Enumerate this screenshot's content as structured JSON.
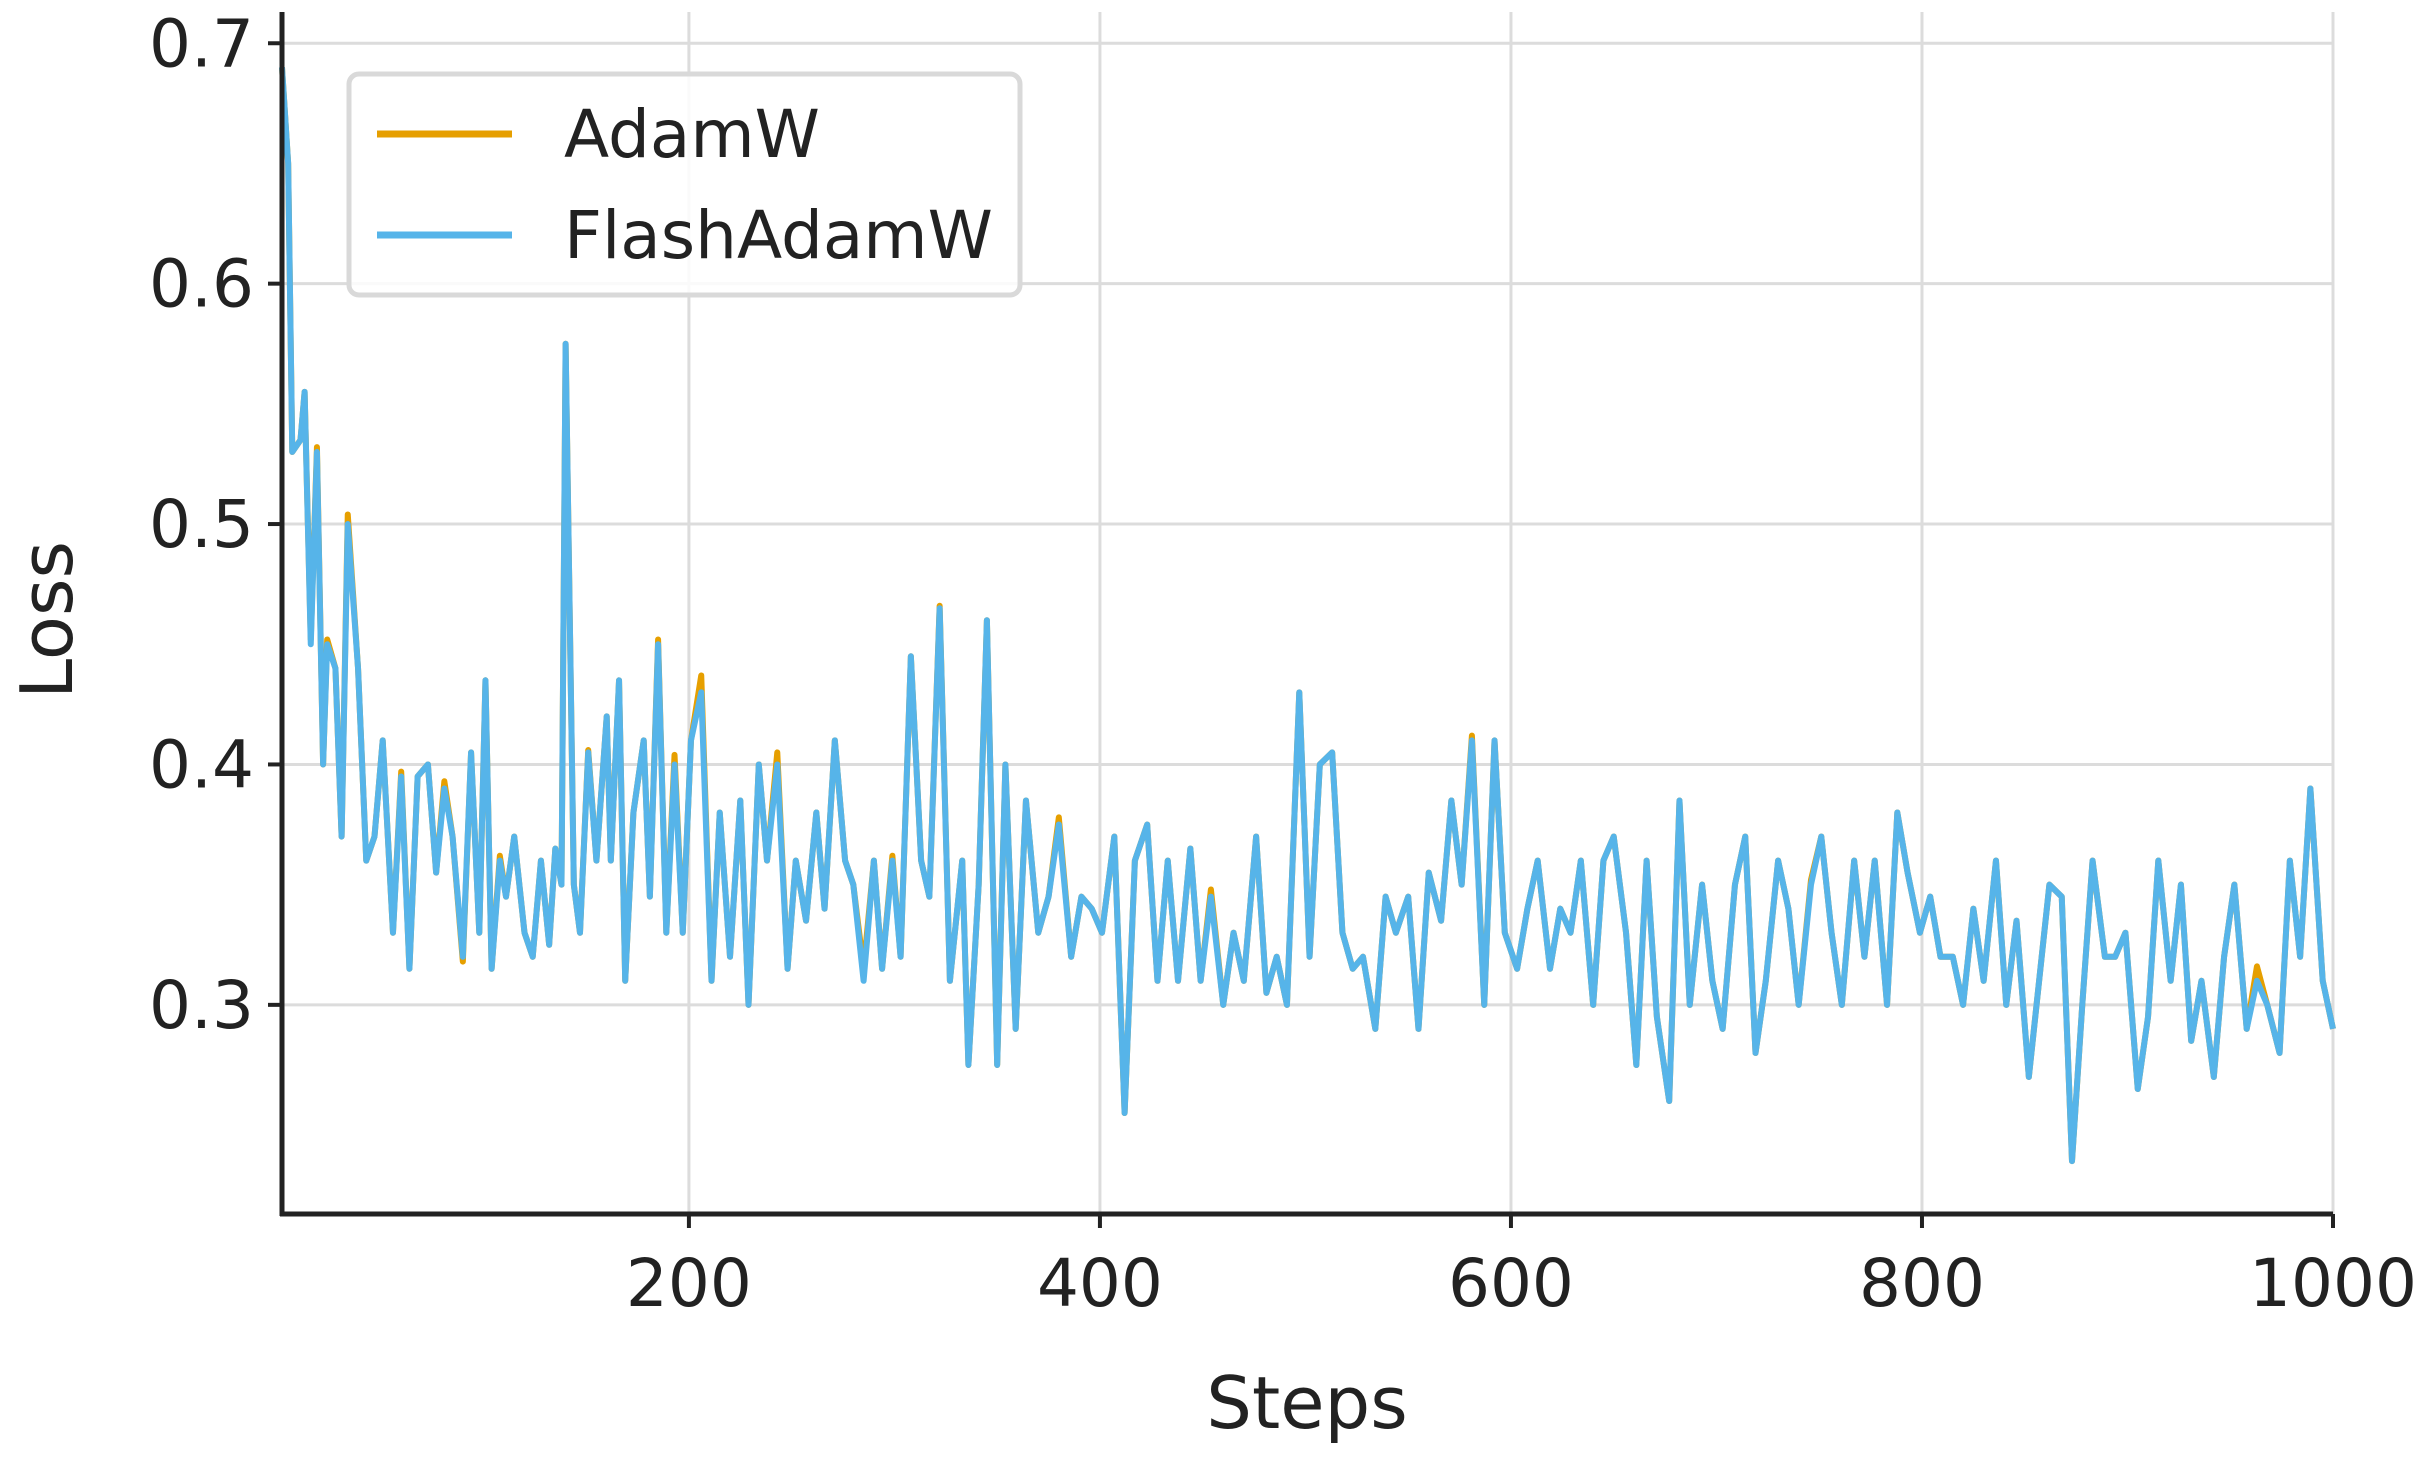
{
  "chart_data": {
    "type": "line",
    "xlabel": "Steps",
    "ylabel": "Loss",
    "x": [
      2,
      5,
      7,
      11,
      13,
      16,
      19,
      22,
      24,
      28,
      31,
      34,
      39,
      43,
      47,
      51,
      56,
      60,
      64,
      68,
      73,
      77,
      81,
      85,
      90,
      94,
      98,
      101,
      104,
      108,
      111,
      115,
      120,
      124,
      128,
      132,
      135,
      138,
      140,
      144,
      147,
      151,
      155,
      160,
      162,
      166,
      169,
      173,
      178,
      181,
      185,
      189,
      193,
      197,
      201,
      206,
      211,
      215,
      220,
      225,
      229,
      234,
      238,
      243,
      248,
      252,
      257,
      262,
      266,
      271,
      276,
      280,
      285,
      290,
      294,
      299,
      303,
      308,
      313,
      317,
      322,
      327,
      333,
      336,
      341,
      345,
      350,
      354,
      359,
      364,
      370,
      375,
      380,
      386,
      391,
      396,
      401,
      407,
      412,
      417,
      423,
      428,
      433,
      438,
      444,
      449,
      454,
      460,
      465,
      470,
      476,
      481,
      486,
      491,
      497,
      502,
      507,
      513,
      518,
      523,
      528,
      534,
      539,
      544,
      550,
      555,
      560,
      566,
      571,
      576,
      581,
      587,
      592,
      597,
      603,
      608,
      613,
      619,
      624,
      629,
      634,
      640,
      645,
      650,
      656,
      661,
      666,
      671,
      677,
      682,
      687,
      693,
      698,
      703,
      709,
      714,
      719,
      724,
      730,
      735,
      740,
      746,
      751,
      756,
      761,
      767,
      772,
      777,
      783,
      788,
      793,
      799,
      804,
      809,
      815,
      820,
      825,
      830,
      836,
      841,
      846,
      852,
      857,
      862,
      868,
      873,
      878,
      883,
      889,
      894,
      899,
      905,
      910,
      915,
      921,
      926,
      931,
      936,
      942,
      947,
      952,
      958,
      963,
      968,
      974,
      979,
      984,
      989,
      995,
      1000
    ],
    "series": [
      {
        "name": "AdamW",
        "color": "#e69f00",
        "values": [
          0.69,
          0.65,
          0.53,
          0.535,
          0.555,
          0.452,
          0.532,
          0.4,
          0.452,
          0.44,
          0.37,
          0.504,
          0.44,
          0.36,
          0.37,
          0.41,
          0.33,
          0.397,
          0.315,
          0.395,
          0.4,
          0.355,
          0.393,
          0.37,
          0.318,
          0.405,
          0.33,
          0.435,
          0.315,
          0.362,
          0.345,
          0.37,
          0.33,
          0.32,
          0.36,
          0.325,
          0.365,
          0.35,
          0.575,
          0.35,
          0.33,
          0.406,
          0.36,
          0.42,
          0.36,
          0.435,
          0.31,
          0.38,
          0.41,
          0.345,
          0.452,
          0.33,
          0.404,
          0.33,
          0.41,
          0.437,
          0.31,
          0.38,
          0.32,
          0.385,
          0.3,
          0.4,
          0.36,
          0.405,
          0.315,
          0.36,
          0.335,
          0.38,
          0.34,
          0.41,
          0.36,
          0.35,
          0.315,
          0.36,
          0.315,
          0.362,
          0.32,
          0.445,
          0.36,
          0.345,
          0.466,
          0.31,
          0.36,
          0.275,
          0.35,
          0.46,
          0.275,
          0.4,
          0.29,
          0.385,
          0.33,
          0.345,
          0.378,
          0.32,
          0.345,
          0.34,
          0.33,
          0.37,
          0.255,
          0.36,
          0.375,
          0.31,
          0.36,
          0.31,
          0.365,
          0.31,
          0.348,
          0.3,
          0.33,
          0.31,
          0.37,
          0.305,
          0.32,
          0.3,
          0.43,
          0.32,
          0.4,
          0.405,
          0.33,
          0.315,
          0.32,
          0.29,
          0.345,
          0.33,
          0.345,
          0.29,
          0.355,
          0.335,
          0.385,
          0.35,
          0.412,
          0.3,
          0.41,
          0.33,
          0.315,
          0.34,
          0.36,
          0.315,
          0.34,
          0.33,
          0.36,
          0.3,
          0.36,
          0.37,
          0.33,
          0.275,
          0.36,
          0.295,
          0.26,
          0.385,
          0.3,
          0.35,
          0.31,
          0.29,
          0.35,
          0.37,
          0.28,
          0.31,
          0.36,
          0.34,
          0.3,
          0.352,
          0.37,
          0.33,
          0.3,
          0.36,
          0.32,
          0.36,
          0.3,
          0.38,
          0.355,
          0.33,
          0.345,
          0.32,
          0.32,
          0.3,
          0.34,
          0.31,
          0.36,
          0.3,
          0.335,
          0.27,
          0.31,
          0.35,
          0.345,
          0.235,
          0.3,
          0.36,
          0.32,
          0.32,
          0.33,
          0.265,
          0.295,
          0.36,
          0.31,
          0.35,
          0.285,
          0.31,
          0.27,
          0.32,
          0.35,
          0.29,
          0.316,
          0.3,
          0.28,
          0.36,
          0.32,
          0.39,
          0.31,
          0.29
        ]
      },
      {
        "name": "FlashAdamW",
        "color": "#56b4e9",
        "values": [
          0.69,
          0.65,
          0.53,
          0.535,
          0.555,
          0.45,
          0.53,
          0.4,
          0.45,
          0.44,
          0.37,
          0.5,
          0.44,
          0.36,
          0.37,
          0.41,
          0.33,
          0.395,
          0.315,
          0.395,
          0.4,
          0.355,
          0.39,
          0.37,
          0.32,
          0.405,
          0.33,
          0.435,
          0.315,
          0.36,
          0.345,
          0.37,
          0.33,
          0.32,
          0.36,
          0.325,
          0.365,
          0.35,
          0.575,
          0.35,
          0.33,
          0.405,
          0.36,
          0.42,
          0.36,
          0.435,
          0.31,
          0.38,
          0.41,
          0.345,
          0.45,
          0.33,
          0.4,
          0.33,
          0.41,
          0.43,
          0.31,
          0.38,
          0.32,
          0.385,
          0.3,
          0.4,
          0.36,
          0.4,
          0.315,
          0.36,
          0.335,
          0.38,
          0.34,
          0.41,
          0.36,
          0.35,
          0.31,
          0.36,
          0.315,
          0.36,
          0.32,
          0.445,
          0.36,
          0.345,
          0.465,
          0.31,
          0.36,
          0.275,
          0.35,
          0.46,
          0.275,
          0.4,
          0.29,
          0.385,
          0.33,
          0.345,
          0.375,
          0.32,
          0.345,
          0.34,
          0.33,
          0.37,
          0.255,
          0.36,
          0.375,
          0.31,
          0.36,
          0.31,
          0.365,
          0.31,
          0.345,
          0.3,
          0.33,
          0.31,
          0.37,
          0.305,
          0.32,
          0.3,
          0.43,
          0.32,
          0.4,
          0.405,
          0.33,
          0.315,
          0.32,
          0.29,
          0.345,
          0.33,
          0.345,
          0.29,
          0.355,
          0.335,
          0.385,
          0.35,
          0.41,
          0.3,
          0.41,
          0.33,
          0.315,
          0.34,
          0.36,
          0.315,
          0.34,
          0.33,
          0.36,
          0.3,
          0.36,
          0.37,
          0.33,
          0.275,
          0.36,
          0.295,
          0.26,
          0.385,
          0.3,
          0.35,
          0.31,
          0.29,
          0.35,
          0.37,
          0.28,
          0.31,
          0.36,
          0.34,
          0.3,
          0.35,
          0.37,
          0.33,
          0.3,
          0.36,
          0.32,
          0.36,
          0.3,
          0.38,
          0.355,
          0.33,
          0.345,
          0.32,
          0.32,
          0.3,
          0.34,
          0.31,
          0.36,
          0.3,
          0.335,
          0.27,
          0.31,
          0.35,
          0.345,
          0.235,
          0.3,
          0.36,
          0.32,
          0.32,
          0.33,
          0.265,
          0.295,
          0.36,
          0.31,
          0.35,
          0.285,
          0.31,
          0.27,
          0.32,
          0.35,
          0.29,
          0.31,
          0.3,
          0.28,
          0.36,
          0.32,
          0.39,
          0.31,
          0.29
        ]
      }
    ],
    "xlim": [
      2,
      1000
    ],
    "xticks": [
      200,
      400,
      600,
      800,
      1000
    ],
    "ylim": [
      0.213,
      0.713
    ],
    "yticks": [
      0.3,
      0.4,
      0.5,
      0.6,
      0.7
    ],
    "grid": true,
    "legend": "upper left"
  }
}
